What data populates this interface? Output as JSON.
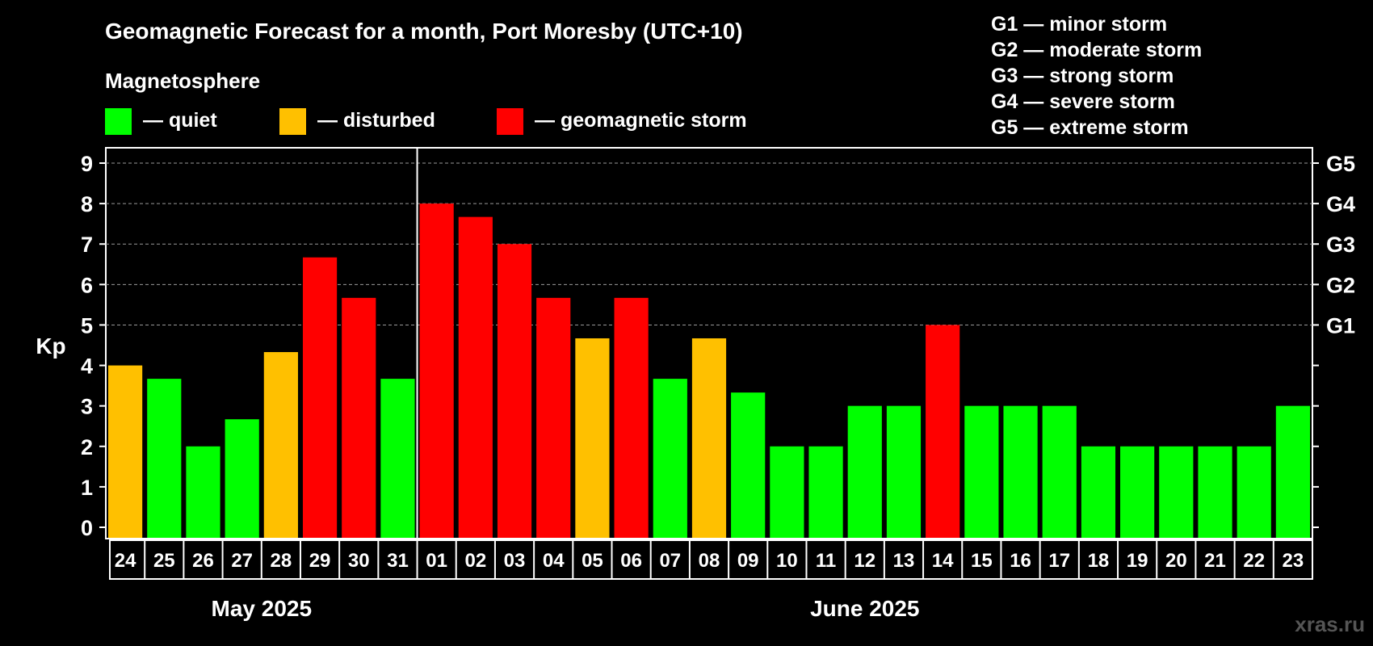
{
  "chart_data": {
    "type": "bar",
    "title": "Geomagnetic Forecast for a month, Port Moresby (UTC+10)",
    "subtitle": "Magnetosphere",
    "ylabel": "Kp",
    "ylim": [
      0,
      9
    ],
    "yticks": [
      "0",
      "1",
      "2",
      "3",
      "4",
      "5",
      "6",
      "7",
      "8",
      "9"
    ],
    "grid": "dashed horizontal at 5-9",
    "legend": [
      {
        "label": "— quiet",
        "color": "#00ff00"
      },
      {
        "label": "— disturbed",
        "color": "#ffc000"
      },
      {
        "label": "— geomagnetic storm",
        "color": "#ff0000"
      }
    ],
    "storm_levels": [
      {
        "label": "G1",
        "kp": 5
      },
      {
        "label": "G2",
        "kp": 6
      },
      {
        "label": "G3",
        "kp": 7
      },
      {
        "label": "G4",
        "kp": 8
      },
      {
        "label": "G5",
        "kp": 9
      }
    ],
    "storm_legend": [
      "G1 — minor storm",
      "G2 — moderate storm",
      "G3 — strong storm",
      "G4 — severe storm",
      "G5 — extreme storm"
    ],
    "categories": [
      "24",
      "25",
      "26",
      "27",
      "28",
      "29",
      "30",
      "31",
      "01",
      "02",
      "03",
      "04",
      "05",
      "06",
      "07",
      "08",
      "09",
      "10",
      "11",
      "12",
      "13",
      "14",
      "15",
      "16",
      "17",
      "18",
      "19",
      "20",
      "21",
      "22",
      "23"
    ],
    "values": [
      4,
      3.67,
      2,
      2.67,
      4.33,
      6.67,
      5.67,
      3.67,
      8,
      7.67,
      7,
      5.67,
      4.67,
      5.67,
      3.67,
      4.67,
      3.33,
      2,
      2,
      3,
      3,
      5,
      3,
      3,
      3,
      2,
      2,
      2,
      2,
      2,
      3
    ],
    "status": [
      "disturbed",
      "quiet",
      "quiet",
      "quiet",
      "disturbed",
      "storm",
      "storm",
      "quiet",
      "storm",
      "storm",
      "storm",
      "storm",
      "disturbed",
      "storm",
      "quiet",
      "disturbed",
      "quiet",
      "quiet",
      "quiet",
      "quiet",
      "quiet",
      "storm",
      "quiet",
      "quiet",
      "quiet",
      "quiet",
      "quiet",
      "quiet",
      "quiet",
      "quiet",
      "quiet"
    ],
    "status_colors": {
      "quiet": "#00ff00",
      "disturbed": "#ffc000",
      "storm": "#ff0000"
    },
    "months": [
      {
        "label": "May 2025",
        "start_index": 0,
        "end_index": 7
      },
      {
        "label": "June 2025",
        "start_index": 8,
        "end_index": 30
      }
    ]
  },
  "watermark": "xras.ru"
}
